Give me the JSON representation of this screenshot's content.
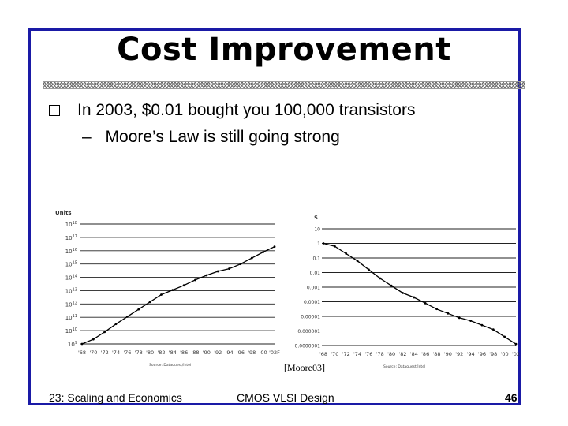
{
  "title": "Cost Improvement",
  "bullet": "In 2003, $0.01 bought you 100,000 transistors",
  "sub_dash": "–",
  "sub": "Moore’s Law is still going strong",
  "citation": "[Moore03]",
  "footer": {
    "left": "23: Scaling and Economics",
    "center": "CMOS VLSI Design",
    "page": "46"
  },
  "chart_data": [
    {
      "type": "line",
      "ylabel": "Units",
      "y_scale": "log",
      "y_ticks": [
        "10^9",
        "10^10",
        "10^11",
        "10^12",
        "10^13",
        "10^14",
        "10^15",
        "10^16",
        "10^17",
        "10^18"
      ],
      "x_ticks": [
        "'68",
        "'70",
        "'72",
        "'74",
        "'76",
        "'78",
        "'80",
        "'82",
        "'84",
        "'86",
        "'88",
        "'90",
        "'92",
        "'94",
        "'96",
        "'98",
        "'00",
        "'02F"
      ],
      "source": "Source: Dataquest/Intel",
      "series": [
        {
          "x": [
            1968,
            1970,
            1972,
            1974,
            1976,
            1978,
            1980,
            1982,
            1984,
            1986,
            1988,
            1990,
            1992,
            1994,
            1996,
            1998,
            2000,
            2002
          ],
          "y": [
            9.0,
            9.35,
            9.9,
            10.5,
            11.05,
            11.6,
            12.15,
            12.7,
            13.05,
            13.4,
            13.8,
            14.15,
            14.45,
            14.65,
            15.0,
            15.45,
            15.9,
            16.3
          ]
        }
      ]
    },
    {
      "type": "line",
      "ylabel": "$",
      "y_scale": "log",
      "y_ticks": [
        "0.0000001",
        "0.000001",
        "0.00001",
        "0.0001",
        "0.001",
        "0.01",
        "0.1",
        "1",
        "10"
      ],
      "x_ticks": [
        "'68",
        "'70",
        "'72",
        "'74",
        "'76",
        "'78",
        "'80",
        "'82",
        "'84",
        "'86",
        "'88",
        "'90",
        "'92",
        "'94",
        "'96",
        "'98",
        "'00",
        "'02"
      ],
      "source": "Source: Dataquest/Intel",
      "series": [
        {
          "x": [
            1968,
            1970,
            1972,
            1974,
            1976,
            1978,
            1980,
            1982,
            1984,
            1986,
            1988,
            1990,
            1992,
            1994,
            1996,
            1998,
            2000,
            2002
          ],
          "y": [
            0.0,
            -0.2,
            -0.7,
            -1.2,
            -1.8,
            -2.4,
            -2.9,
            -3.4,
            -3.7,
            -4.1,
            -4.5,
            -4.8,
            -5.1,
            -5.3,
            -5.6,
            -5.9,
            -6.4,
            -6.9
          ]
        }
      ]
    }
  ]
}
